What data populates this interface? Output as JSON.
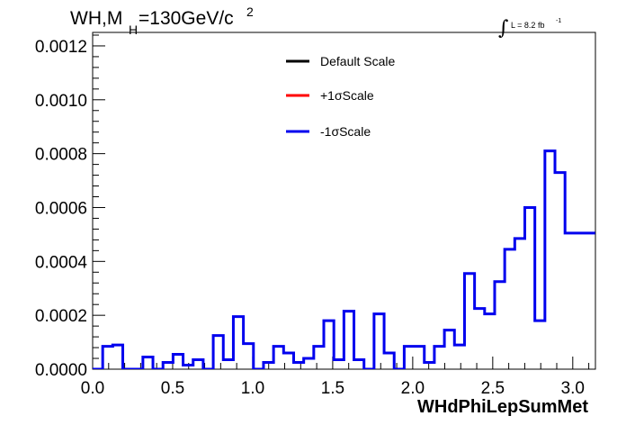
{
  "chart_data": {
    "type": "histogram",
    "title": {
      "main": "WH,M",
      "subscript": "H",
      "rest": "=130GeV/c",
      "superscript": "2"
    },
    "xlabel": "WHdPhiLepSumMet",
    "ylabel": "",
    "lumi": {
      "integral": "∫",
      "text": "L = 8.2 fb",
      "exponent": "-1"
    },
    "xlim": [
      0,
      3.1416
    ],
    "ylim": [
      0,
      0.00125
    ],
    "x_ticks": [
      {
        "value": 0.0,
        "label": "0.0"
      },
      {
        "value": 0.5,
        "label": "0.5"
      },
      {
        "value": 1.0,
        "label": "1.0"
      },
      {
        "value": 1.5,
        "label": "1.5"
      },
      {
        "value": 2.0,
        "label": "2.0"
      },
      {
        "value": 2.5,
        "label": "2.5"
      },
      {
        "value": 3.0,
        "label": "3.0"
      }
    ],
    "y_ticks": [
      {
        "value": 0.0,
        "label": "0.0000"
      },
      {
        "value": 0.0002,
        "label": "0.0002"
      },
      {
        "value": 0.0004,
        "label": "0.0004"
      },
      {
        "value": 0.0006,
        "label": "0.0006"
      },
      {
        "value": 0.0008,
        "label": "0.0008"
      },
      {
        "value": 0.001,
        "label": "0.0010"
      },
      {
        "value": 0.0012,
        "label": "0.0012"
      }
    ],
    "grid": false,
    "legend_position": "top-center",
    "legend": [
      {
        "label": "Default Scale",
        "color": "#000000"
      },
      {
        "label": "+1σScale",
        "color": "#ff0000"
      },
      {
        "label": "-1σScale",
        "color": "#0000ee"
      }
    ],
    "bin_width": 0.0628,
    "series": [
      {
        "name": "-1σScale",
        "color": "#0000ee",
        "values": [
          0.0,
          8.5e-05,
          9e-05,
          0.0,
          0.0,
          4.5e-05,
          0.0,
          2.5e-05,
          5.5e-05,
          1.5e-05,
          3.5e-05,
          0.0,
          0.000125,
          3.5e-05,
          0.000195,
          9.5e-05,
          0.0,
          2.5e-05,
          8.5e-05,
          6e-05,
          2.5e-05,
          4e-05,
          8.5e-05,
          0.00018,
          3.5e-05,
          0.000215,
          3.5e-05,
          0.0,
          0.000205,
          6e-05,
          0.0,
          8.5e-05,
          8.5e-05,
          2.5e-05,
          8.5e-05,
          0.000145,
          9e-05,
          0.000355,
          0.000225,
          0.000205,
          0.000325,
          0.000445,
          0.000485,
          0.0006,
          0.00018,
          0.00081,
          0.00073,
          0.000505,
          0.000505,
          0.000505
        ]
      }
    ]
  }
}
